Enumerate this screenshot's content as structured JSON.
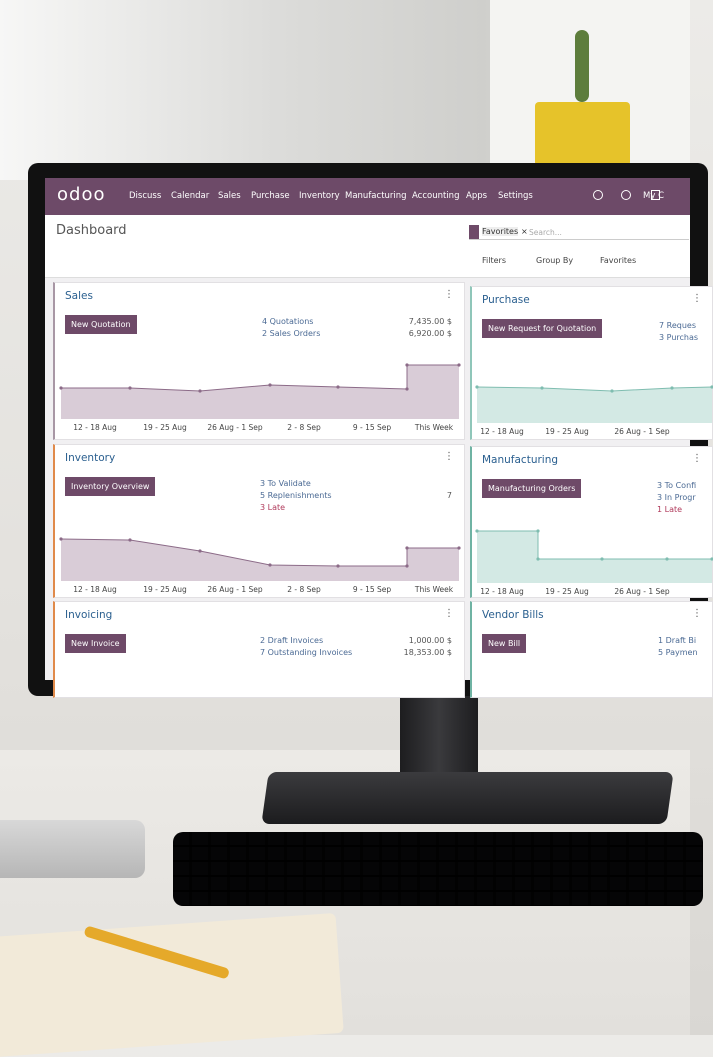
{
  "nav": {
    "logo": "odoo",
    "menu": [
      "Discuss",
      "Calendar",
      "Sales",
      "Purchase",
      "Inventory",
      "Manufacturing",
      "Accounting",
      "Apps",
      "Settings"
    ],
    "user": "My C"
  },
  "header": {
    "title": "Dashboard",
    "facet": "Favorites",
    "search_placeholder": "Search...",
    "filters": "Filters",
    "group_by": "Group By",
    "favorites": "Favorites"
  },
  "cards": [
    {
      "title": "Sales",
      "button": "New Quotation",
      "links": [
        {
          "text": "4 Quotations",
          "amount": "7,435.00 $"
        },
        {
          "text": "2 Sales Orders",
          "amount": "6,920.00 $"
        }
      ],
      "x_labels": [
        "12 - 18 Aug",
        "19 - 25 Aug",
        "26 Aug - 1 Sep",
        "2 - 8 Sep",
        "9 - 15 Sep",
        "This Week"
      ]
    },
    {
      "title": "Purchase",
      "button": "New Request for Quotation",
      "links": [
        {
          "text": "7 Reques"
        },
        {
          "text": "3 Purchas"
        }
      ],
      "x_labels": [
        "12 - 18 Aug",
        "19 - 25 Aug",
        "26 Aug - 1 Sep"
      ]
    },
    {
      "title": "Inventory",
      "button": "Inventory Overview",
      "links": [
        {
          "text": "3 To Validate"
        },
        {
          "text": "5 Replenishments",
          "amount": "7"
        },
        {
          "text": "3 Late",
          "color": "#b03a5b"
        }
      ],
      "x_labels": [
        "12 - 18 Aug",
        "19 - 25 Aug",
        "26 Aug - 1 Sep",
        "2 - 8 Sep",
        "9 - 15 Sep",
        "This Week"
      ]
    },
    {
      "title": "Manufacturing",
      "button": "Manufacturing Orders",
      "links": [
        {
          "text": "3 To Confi"
        },
        {
          "text": "3 In Progr"
        },
        {
          "text": "1 Late",
          "color": "#b03a5b"
        }
      ],
      "x_labels": [
        "12 - 18 Aug",
        "19 - 25 Aug",
        "26 Aug - 1 Sep"
      ]
    },
    {
      "title": "Invoicing",
      "button": "New Invoice",
      "links": [
        {
          "text": "2 Draft Invoices",
          "amount": "1,000.00 $"
        },
        {
          "text": "7 Outstanding Invoices",
          "amount": "18,353.00 $"
        }
      ]
    },
    {
      "title": "Vendor Bills",
      "button": "New Bill",
      "links": [
        {
          "text": "1 Draft Bi"
        },
        {
          "text": "5 Paymen"
        }
      ]
    }
  ]
}
